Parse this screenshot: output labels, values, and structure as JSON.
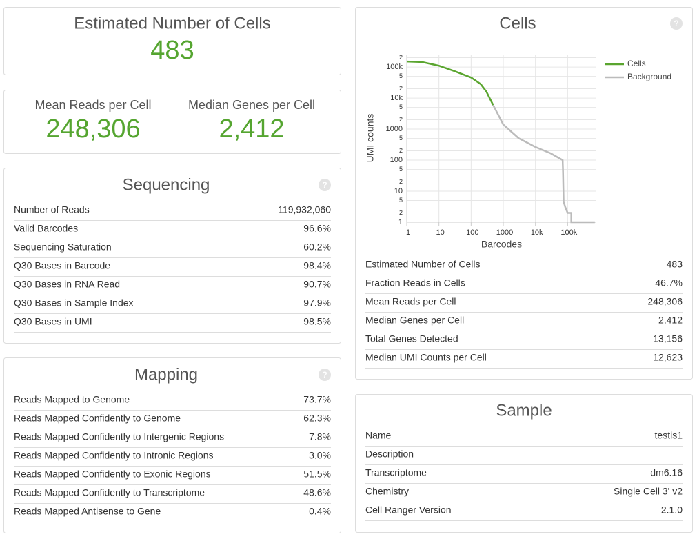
{
  "summary": {
    "title": "Estimated Number of Cells",
    "value": "483"
  },
  "highlights": [
    {
      "label": "Mean Reads per Cell",
      "value": "248,306"
    },
    {
      "label": "Median Genes per Cell",
      "value": "2,412"
    }
  ],
  "sequencing": {
    "title": "Sequencing",
    "rows": [
      [
        "Number of Reads",
        "119,932,060"
      ],
      [
        "Valid Barcodes",
        "96.6%"
      ],
      [
        "Sequencing Saturation",
        "60.2%"
      ],
      [
        "Q30 Bases in Barcode",
        "98.4%"
      ],
      [
        "Q30 Bases in RNA Read",
        "90.7%"
      ],
      [
        "Q30 Bases in Sample Index",
        "97.9%"
      ],
      [
        "Q30 Bases in UMI",
        "98.5%"
      ]
    ]
  },
  "mapping": {
    "title": "Mapping",
    "rows": [
      [
        "Reads Mapped to Genome",
        "73.7%"
      ],
      [
        "Reads Mapped Confidently to Genome",
        "62.3%"
      ],
      [
        "Reads Mapped Confidently to Intergenic Regions",
        "7.8%"
      ],
      [
        "Reads Mapped Confidently to Intronic Regions",
        "3.0%"
      ],
      [
        "Reads Mapped Confidently to Exonic Regions",
        "51.5%"
      ],
      [
        "Reads Mapped Confidently to Transcriptome",
        "48.6%"
      ],
      [
        "Reads Mapped Antisense to Gene",
        "0.4%"
      ]
    ]
  },
  "cells": {
    "title": "Cells",
    "rows": [
      [
        "Estimated Number of Cells",
        "483"
      ],
      [
        "Fraction Reads in Cells",
        "46.7%"
      ],
      [
        "Mean Reads per Cell",
        "248,306"
      ],
      [
        "Median Genes per Cell",
        "2,412"
      ],
      [
        "Total Genes Detected",
        "13,156"
      ],
      [
        "Median UMI Counts per Cell",
        "12,623"
      ]
    ]
  },
  "chart_data": {
    "type": "line",
    "x_label": "Barcodes",
    "y_label": "UMI counts",
    "xscale": "log",
    "yscale": "log",
    "grid": true,
    "legend": "right",
    "xlim": [
      1,
      780000
    ],
    "ylim": [
      1,
      240000
    ],
    "xticks": [
      1,
      10,
      100,
      1000,
      {
        "value": 10000,
        "label": "10k"
      },
      {
        "value": 100000,
        "label": "100k"
      }
    ],
    "yticks": [
      1,
      2,
      5,
      10,
      {
        "value": 20,
        "label": "2"
      },
      {
        "value": 50,
        "label": "5"
      },
      100,
      {
        "value": 200,
        "label": "2"
      },
      {
        "value": 500,
        "label": "5"
      },
      1000,
      {
        "value": 2000,
        "label": "2"
      },
      {
        "value": 5000,
        "label": "5"
      },
      {
        "value": 10000,
        "label": "10k"
      },
      {
        "value": 20000,
        "label": "2"
      },
      {
        "value": 50000,
        "label": "5"
      },
      {
        "value": 100000,
        "label": "100k"
      },
      {
        "value": 200000,
        "label": "2"
      }
    ],
    "series": [
      {
        "name": "Cells",
        "color": "#5aa52f",
        "x": [
          1,
          3,
          10,
          30,
          100,
          200,
          300,
          483
        ],
        "values": [
          150000,
          145000,
          110000,
          74000,
          46000,
          28000,
          16000,
          6000
        ]
      },
      {
        "name": "Background",
        "color": "#bbbbbb",
        "x": [
          483,
          1000,
          3000,
          10000,
          30000,
          70000,
          72000,
          75000,
          85000,
          100000,
          130000,
          130000,
          700000
        ],
        "values": [
          6000,
          1400,
          510,
          265,
          165,
          100,
          40,
          4.6,
          3,
          2,
          2,
          1,
          1
        ]
      }
    ]
  },
  "sample": {
    "title": "Sample",
    "rows": [
      [
        "Name",
        "testis1"
      ],
      [
        "Description"
      ],
      [
        "Transcriptome",
        "dm6.16"
      ],
      [
        "Chemistry",
        "Single Cell 3' v2"
      ],
      [
        "Cell Ranger Version",
        "2.1.0"
      ]
    ]
  }
}
